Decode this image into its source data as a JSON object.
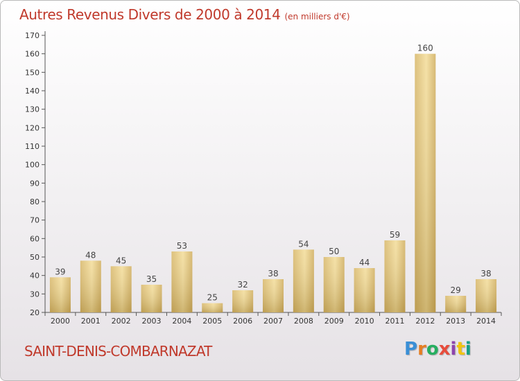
{
  "title": "Autres Revenus Divers de 2000 à 2014",
  "unit_note": "(en milliers d'€)",
  "commune": "SAINT-DENIS-COMBARNAZAT",
  "logo": {
    "text": "Proxiti",
    "colors": [
      "#3a8fd6",
      "#e67e22",
      "#27ae60",
      "#e74c3c",
      "#8e44ad",
      "#f1c40f",
      "#16a085"
    ]
  },
  "chart_data": {
    "type": "bar",
    "categories": [
      "2000",
      "2001",
      "2002",
      "2003",
      "2004",
      "2005",
      "2006",
      "2007",
      "2008",
      "2009",
      "2010",
      "2011",
      "2012",
      "2013",
      "2014"
    ],
    "values": [
      39,
      48,
      45,
      35,
      53,
      25,
      32,
      38,
      54,
      50,
      44,
      59,
      160,
      29,
      38
    ],
    "ylim": [
      20,
      170
    ],
    "yticks": [
      20,
      30,
      40,
      50,
      60,
      70,
      80,
      90,
      100,
      110,
      120,
      130,
      140,
      150,
      160,
      170
    ],
    "bar_color": "#e6c97d",
    "grid": false
  }
}
